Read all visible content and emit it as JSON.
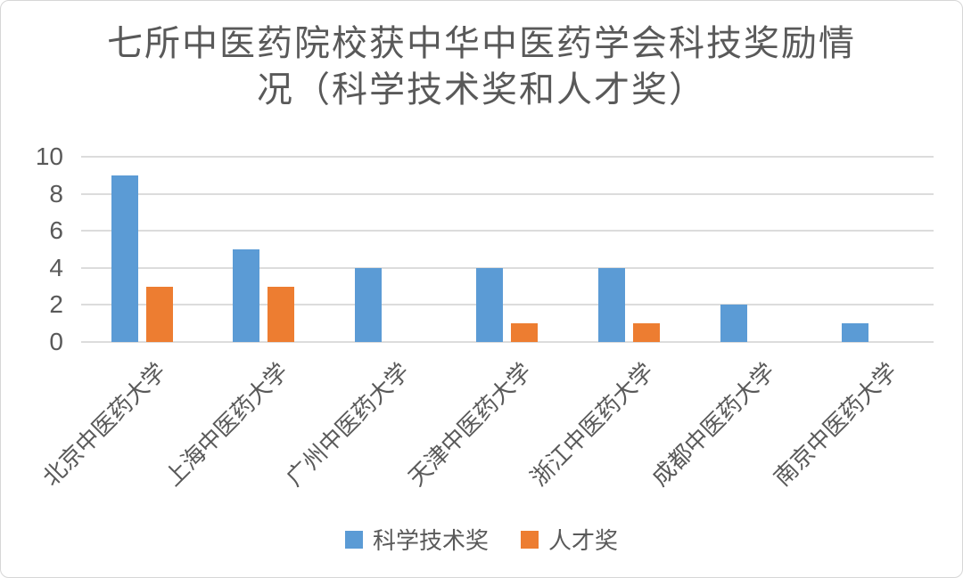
{
  "chart_data": {
    "type": "bar",
    "title": "七所中医药院校获中华中医药学会科技奖励情况（科学技术奖和人才奖）",
    "title_lines": [
      "七所中医药院校获中华中医药学会科技奖励情",
      "况（科学技术奖和人才奖）"
    ],
    "categories": [
      "北京中医药大学",
      "上海中医药大学",
      "广州中医药大学",
      "天津中医药大学",
      "浙江中医药大学",
      "成都中医药大学",
      "南京中医药大学"
    ],
    "series": [
      {
        "name": "科学技术奖",
        "color": "#5B9BD5",
        "values": [
          9,
          5,
          4,
          4,
          4,
          2,
          1
        ]
      },
      {
        "name": "人才奖",
        "color": "#ED7D31",
        "values": [
          3,
          3,
          0,
          1,
          1,
          0,
          0
        ]
      }
    ],
    "xlabel": "",
    "ylabel": "",
    "ylim": [
      0,
      10
    ],
    "yticks": [
      0,
      2,
      4,
      6,
      8,
      10
    ],
    "grid": true,
    "legend_position": "bottom"
  },
  "styles": {
    "text_color": "#595959",
    "gridline_color": "#DCDCDC",
    "background": "#FFFFFF",
    "border_color": "#D6D6D6"
  }
}
